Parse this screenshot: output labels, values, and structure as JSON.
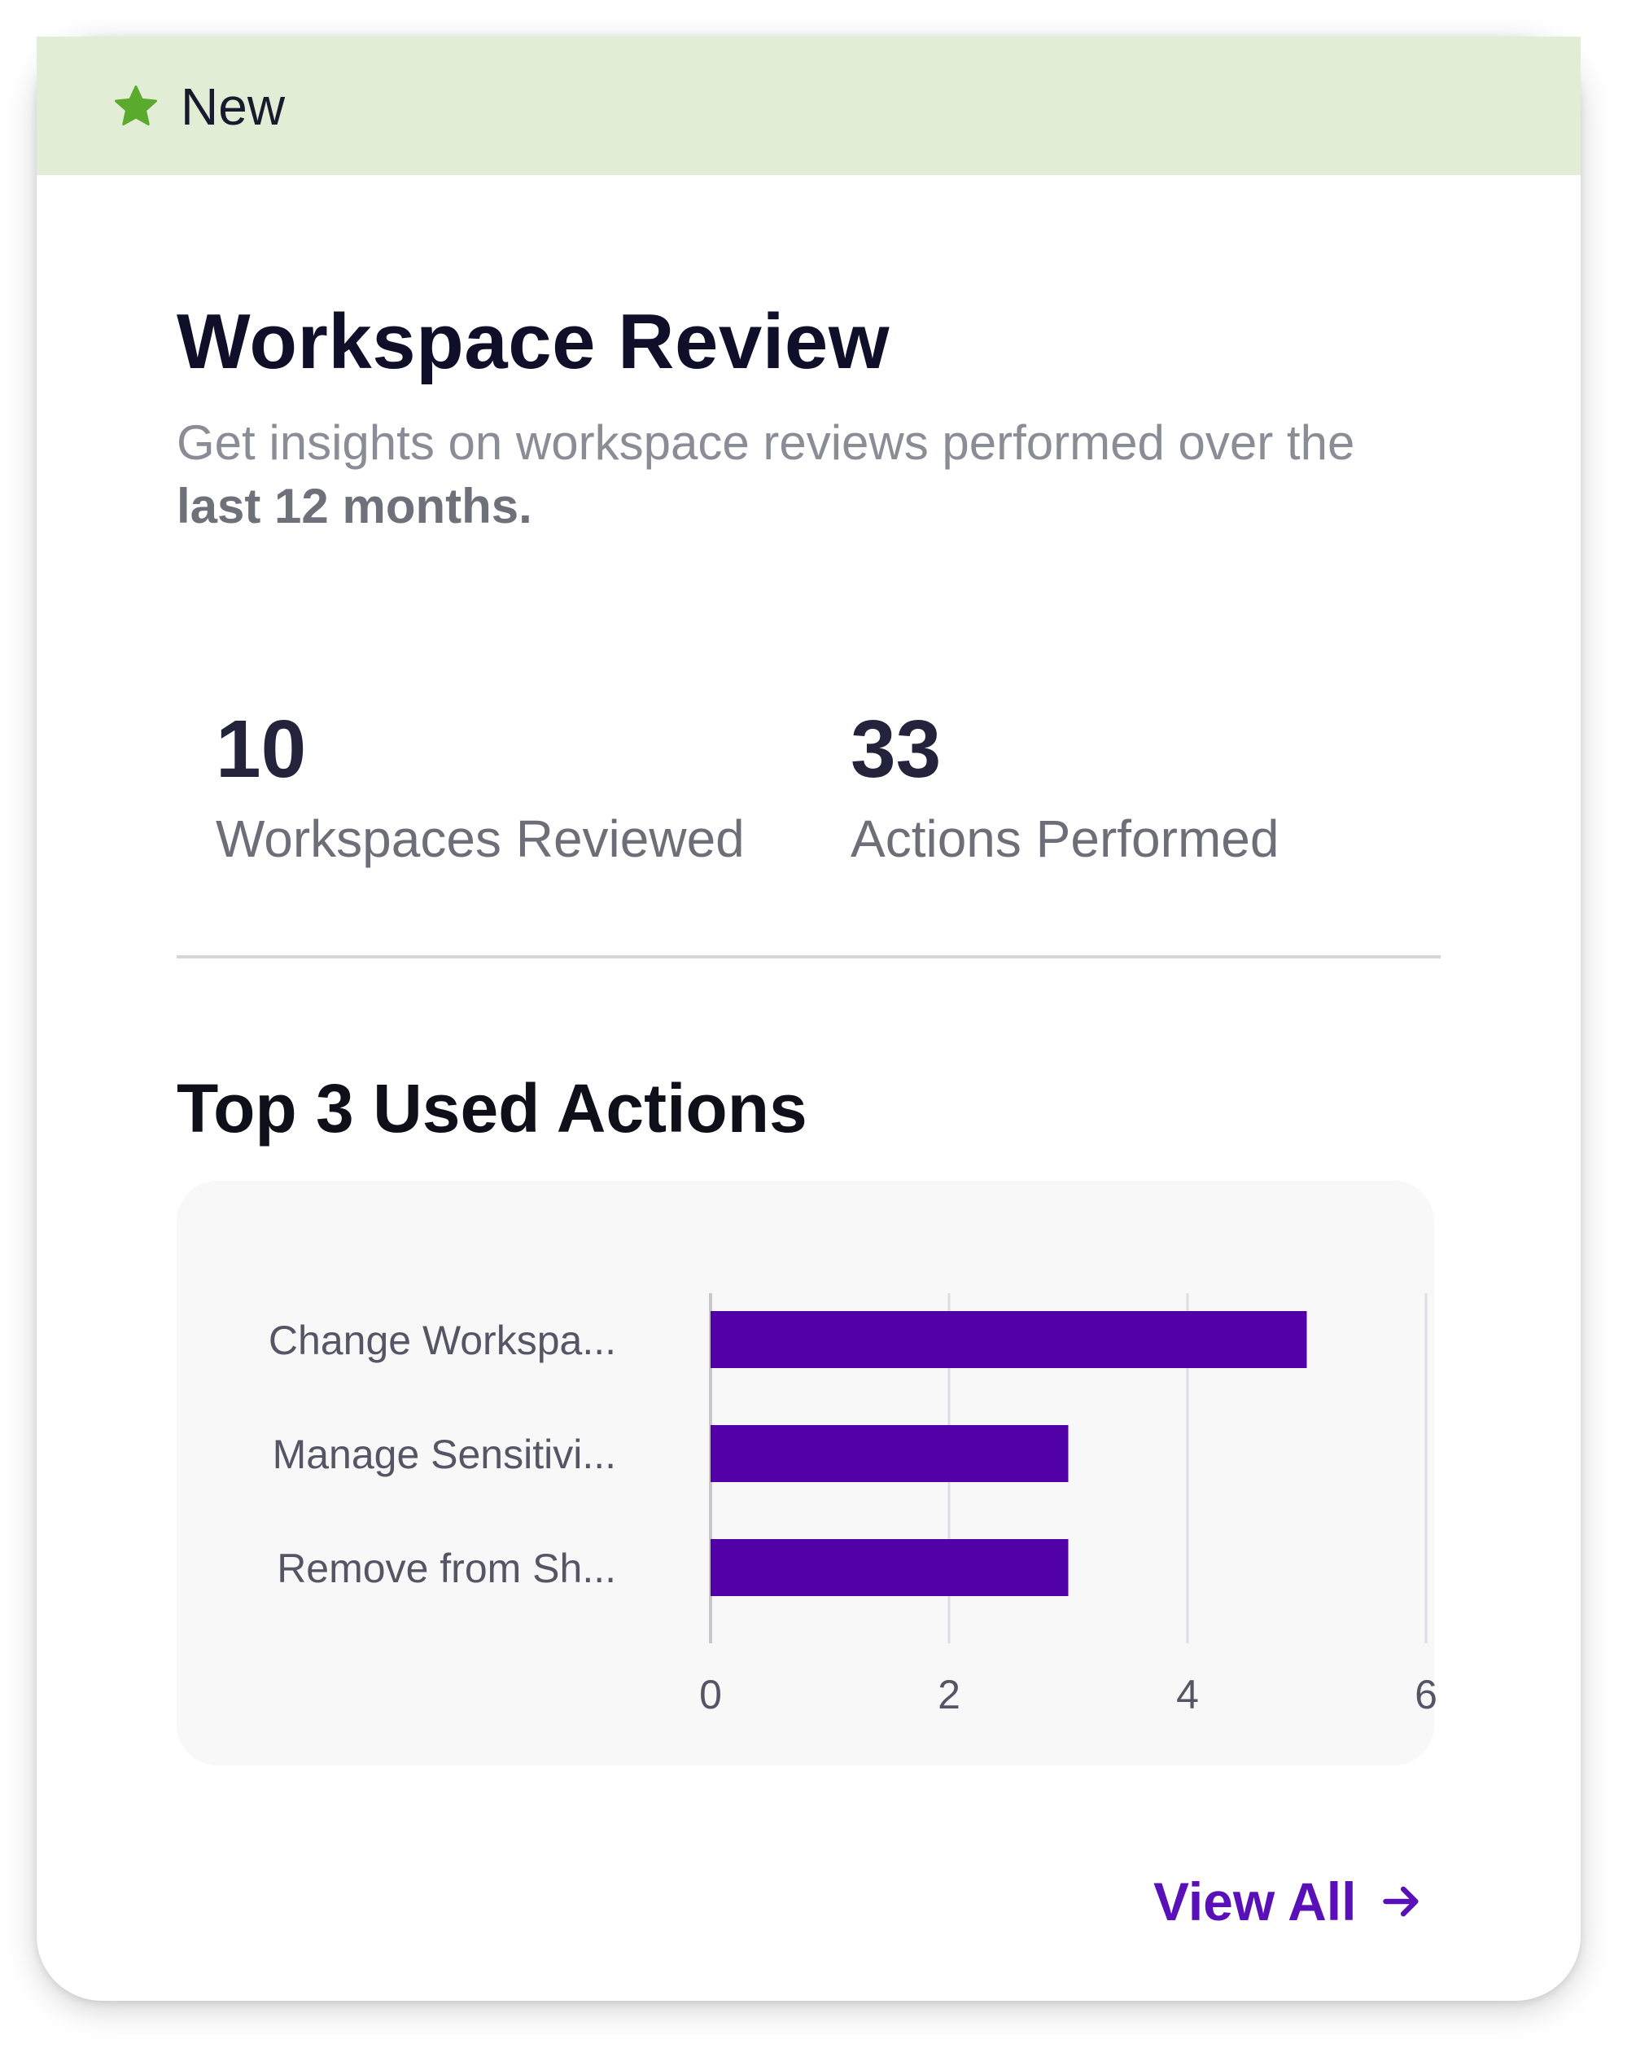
{
  "banner": {
    "icon": "star-icon",
    "label": "New",
    "icon_color": "#5aaa2e"
  },
  "header": {
    "title": "Workspace Review",
    "subtitle_prefix": "Get insights on workspace reviews performed over the",
    "subtitle_bold": "last 12 months."
  },
  "stats": [
    {
      "value": "10",
      "label": "Workspaces Reviewed"
    },
    {
      "value": "33",
      "label": "Actions Performed"
    }
  ],
  "section": {
    "title": "Top 3 Used Actions"
  },
  "chart_data": {
    "type": "bar",
    "orientation": "horizontal",
    "categories": [
      "Change Workspa...",
      "Manage Sensitivi...",
      "Remove from Sh..."
    ],
    "values": [
      5,
      3,
      3
    ],
    "xlim": [
      0,
      6
    ],
    "xticks": [
      "0",
      "2",
      "4",
      "6"
    ],
    "bar_color": "#5200a8",
    "grid": true
  },
  "footer": {
    "view_all_label": "View All",
    "arrow_icon": "arrow-right-icon",
    "accent_color": "#5a10b8"
  }
}
